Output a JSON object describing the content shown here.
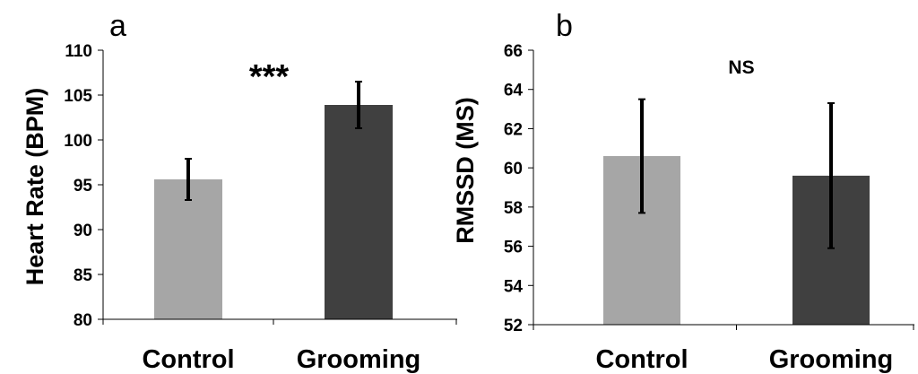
{
  "chart_data": [
    {
      "type": "bar",
      "panel_label": "a",
      "categories": [
        "Control",
        "Grooming"
      ],
      "values": [
        95.6,
        103.9
      ],
      "error": [
        2.3,
        2.6
      ],
      "colors": [
        "#a6a6a6",
        "#404040"
      ],
      "ylabel": "Heart Rate (BPM)",
      "ylim": [
        80,
        110
      ],
      "yticks": [
        "80",
        "85",
        "90",
        "95",
        "100",
        "105",
        "110"
      ],
      "annotation": "***",
      "grid": false
    },
    {
      "type": "bar",
      "panel_label": "b",
      "categories": [
        "Control",
        "Grooming"
      ],
      "values": [
        60.6,
        59.6
      ],
      "error": [
        2.9,
        3.7
      ],
      "colors": [
        "#a6a6a6",
        "#404040"
      ],
      "ylabel": "RMSSD (MS)",
      "ylim": [
        52,
        66
      ],
      "yticks": [
        "52",
        "54",
        "56",
        "58",
        "60",
        "62",
        "64",
        "66"
      ],
      "annotation": "NS",
      "grid": false
    }
  ]
}
